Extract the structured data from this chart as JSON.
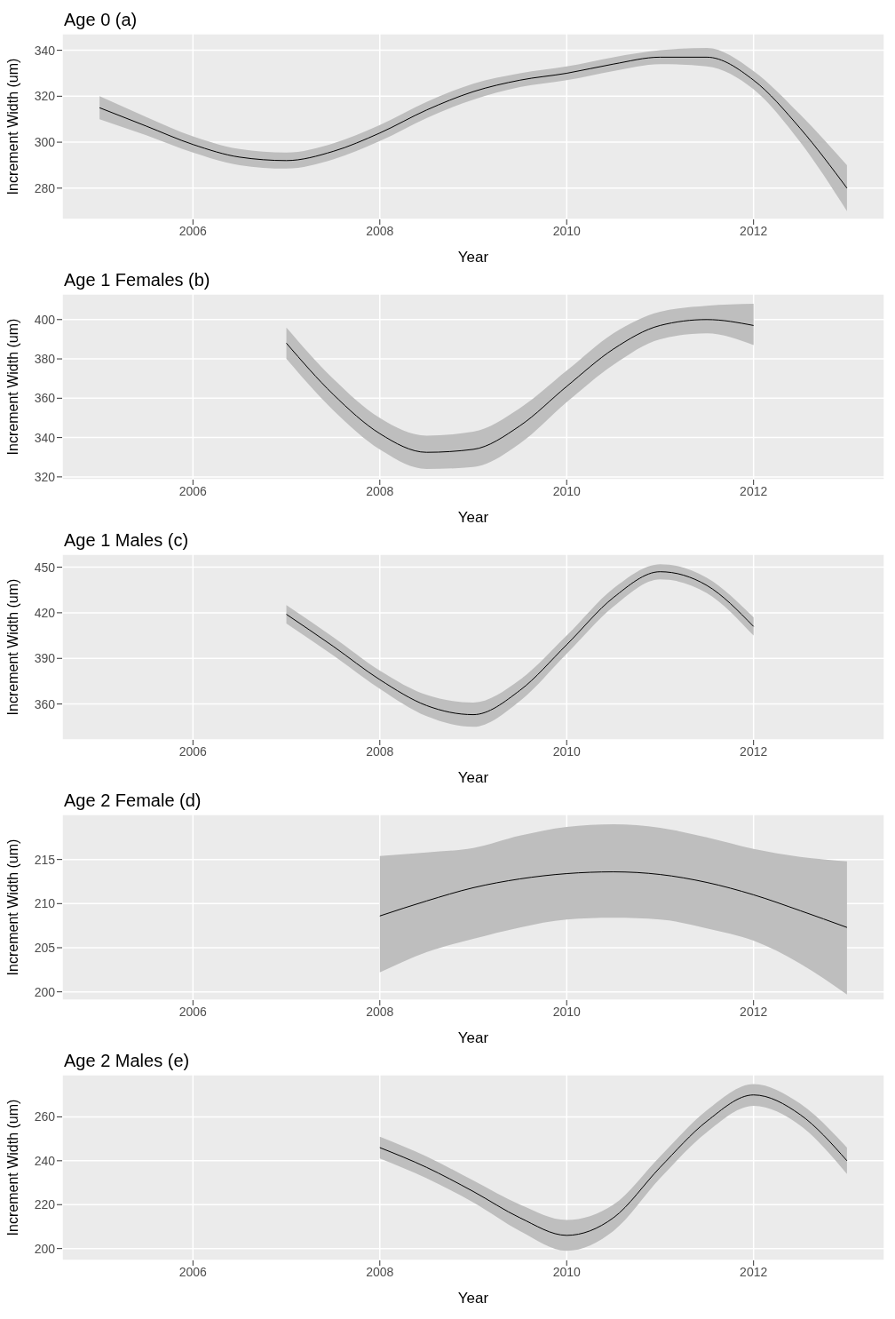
{
  "chart_data": [
    {
      "type": "line",
      "title": "Age 0 (a)",
      "xlabel": "Year",
      "ylabel": "Increment Width (um)",
      "xlim": [
        2004.6,
        2013.4
      ],
      "xticks": [
        2006,
        2008,
        2010,
        2012
      ],
      "ylim": [
        266.4,
        347.2
      ],
      "yticks": [
        280,
        300,
        320,
        340
      ],
      "grid": true,
      "x": [
        2005,
        2005.5,
        2006,
        2006.5,
        2007,
        2007.5,
        2008,
        2008.5,
        2009,
        2009.5,
        2010,
        2010.5,
        2011,
        2011.5,
        2012,
        2012.5,
        2013
      ],
      "series": [
        {
          "color": "#000000",
          "values": [
            315,
            307,
            299,
            293.5,
            292,
            296,
            304,
            314,
            322,
            327,
            330,
            334,
            337,
            337,
            327,
            306,
            280
          ],
          "lower": [
            310,
            303,
            295.5,
            290,
            288.5,
            292.5,
            300.5,
            310.5,
            318.5,
            324,
            327,
            331,
            334,
            333,
            323,
            300,
            270
          ],
          "upper": [
            320,
            311,
            302.5,
            297,
            295.5,
            299.5,
            307.5,
            317.5,
            325.5,
            330,
            333,
            337,
            340,
            341,
            331,
            312,
            290
          ]
        }
      ]
    },
    {
      "type": "line",
      "title": "Age 1 Females (b)",
      "xlabel": "Year",
      "ylabel": "Increment Width (um)",
      "xlim": [
        2004.6,
        2013.4
      ],
      "xticks": [
        2006,
        2008,
        2010,
        2012
      ],
      "ylim": [
        318.6,
        413
      ],
      "yticks": [
        320,
        340,
        360,
        380,
        400
      ],
      "grid": true,
      "x": [
        2007,
        2007.5,
        2008,
        2008.5,
        2009,
        2009.5,
        2010,
        2010.5,
        2011,
        2011.5,
        2012
      ],
      "series": [
        {
          "color": "#000000",
          "values": [
            388,
            362,
            342,
            332.5,
            334,
            346,
            366,
            385,
            397,
            400,
            397
          ],
          "lower": [
            380,
            354,
            334,
            324,
            325,
            337,
            358,
            377,
            390,
            393,
            387
          ],
          "upper": [
            396,
            370,
            350,
            341,
            343,
            355,
            374,
            393,
            404,
            407,
            408
          ]
        }
      ]
    },
    {
      "type": "line",
      "title": "Age 1 Males (c)",
      "xlabel": "Year",
      "ylabel": "Increment Width (um)",
      "xlim": [
        2004.6,
        2013.4
      ],
      "xticks": [
        2006,
        2008,
        2010,
        2012
      ],
      "ylim": [
        336.4,
        458.5
      ],
      "yticks": [
        360,
        390,
        420,
        450
      ],
      "grid": true,
      "x": [
        2007,
        2007.5,
        2008,
        2008.5,
        2009,
        2009.5,
        2010,
        2010.5,
        2011,
        2011.5,
        2012
      ],
      "series": [
        {
          "color": "#000000",
          "values": [
            419,
            398,
            376,
            359,
            353,
            369,
            399,
            430,
            447,
            438,
            411
          ],
          "lower": [
            413,
            392,
            370,
            352,
            345,
            362,
            393,
            424,
            442,
            433,
            405
          ],
          "upper": [
            425,
            404,
            382,
            366,
            361,
            376,
            405,
            436,
            452,
            443,
            417
          ]
        }
      ]
    },
    {
      "type": "line",
      "title": "Age 2 Female (d)",
      "xlabel": "Year",
      "ylabel": "Increment Width (um)",
      "xlim": [
        2004.6,
        2013.4
      ],
      "xticks": [
        2006,
        2008,
        2010,
        2012
      ],
      "ylim": [
        199.06,
        220.1
      ],
      "yticks": [
        200,
        205,
        210,
        215
      ],
      "grid": true,
      "x": [
        2008,
        2008.5,
        2009,
        2009.5,
        2010,
        2010.5,
        2011,
        2011.5,
        2012,
        2012.5,
        2013
      ],
      "series": [
        {
          "color": "#000000",
          "values": [
            208.6,
            210.3,
            211.8,
            212.8,
            213.4,
            213.6,
            213.3,
            212.4,
            211,
            209.2,
            207.3
          ],
          "lower": [
            202.2,
            204.5,
            206,
            207.3,
            208.2,
            208.4,
            208.2,
            207.2,
            205.8,
            203.2,
            199.7
          ],
          "upper": [
            215.4,
            215.8,
            216.3,
            217.7,
            218.7,
            219,
            218.6,
            217.5,
            216.2,
            215.3,
            214.8
          ]
        }
      ]
    },
    {
      "type": "line",
      "title": "Age 2 Males (e)",
      "xlabel": "Year",
      "ylabel": "Increment Width (um)",
      "xlim": [
        2004.6,
        2013.4
      ],
      "xticks": [
        2006,
        2008,
        2010,
        2012
      ],
      "ylim": [
        194.6,
        279.2
      ],
      "yticks": [
        200,
        220,
        240,
        260
      ],
      "grid": true,
      "x": [
        2008,
        2008.5,
        2009,
        2009.5,
        2010,
        2010.5,
        2011,
        2011.5,
        2012,
        2012.5,
        2013
      ],
      "series": [
        {
          "color": "#000000",
          "values": [
            246,
            237,
            226,
            214,
            206,
            214,
            237,
            258,
            270,
            261,
            240
          ],
          "lower": [
            241,
            232,
            221,
            208,
            199,
            208,
            232,
            253,
            265,
            256,
            234
          ],
          "upper": [
            251,
            242,
            231,
            220,
            213,
            220,
            242,
            263,
            275,
            266,
            246
          ]
        }
      ]
    }
  ]
}
